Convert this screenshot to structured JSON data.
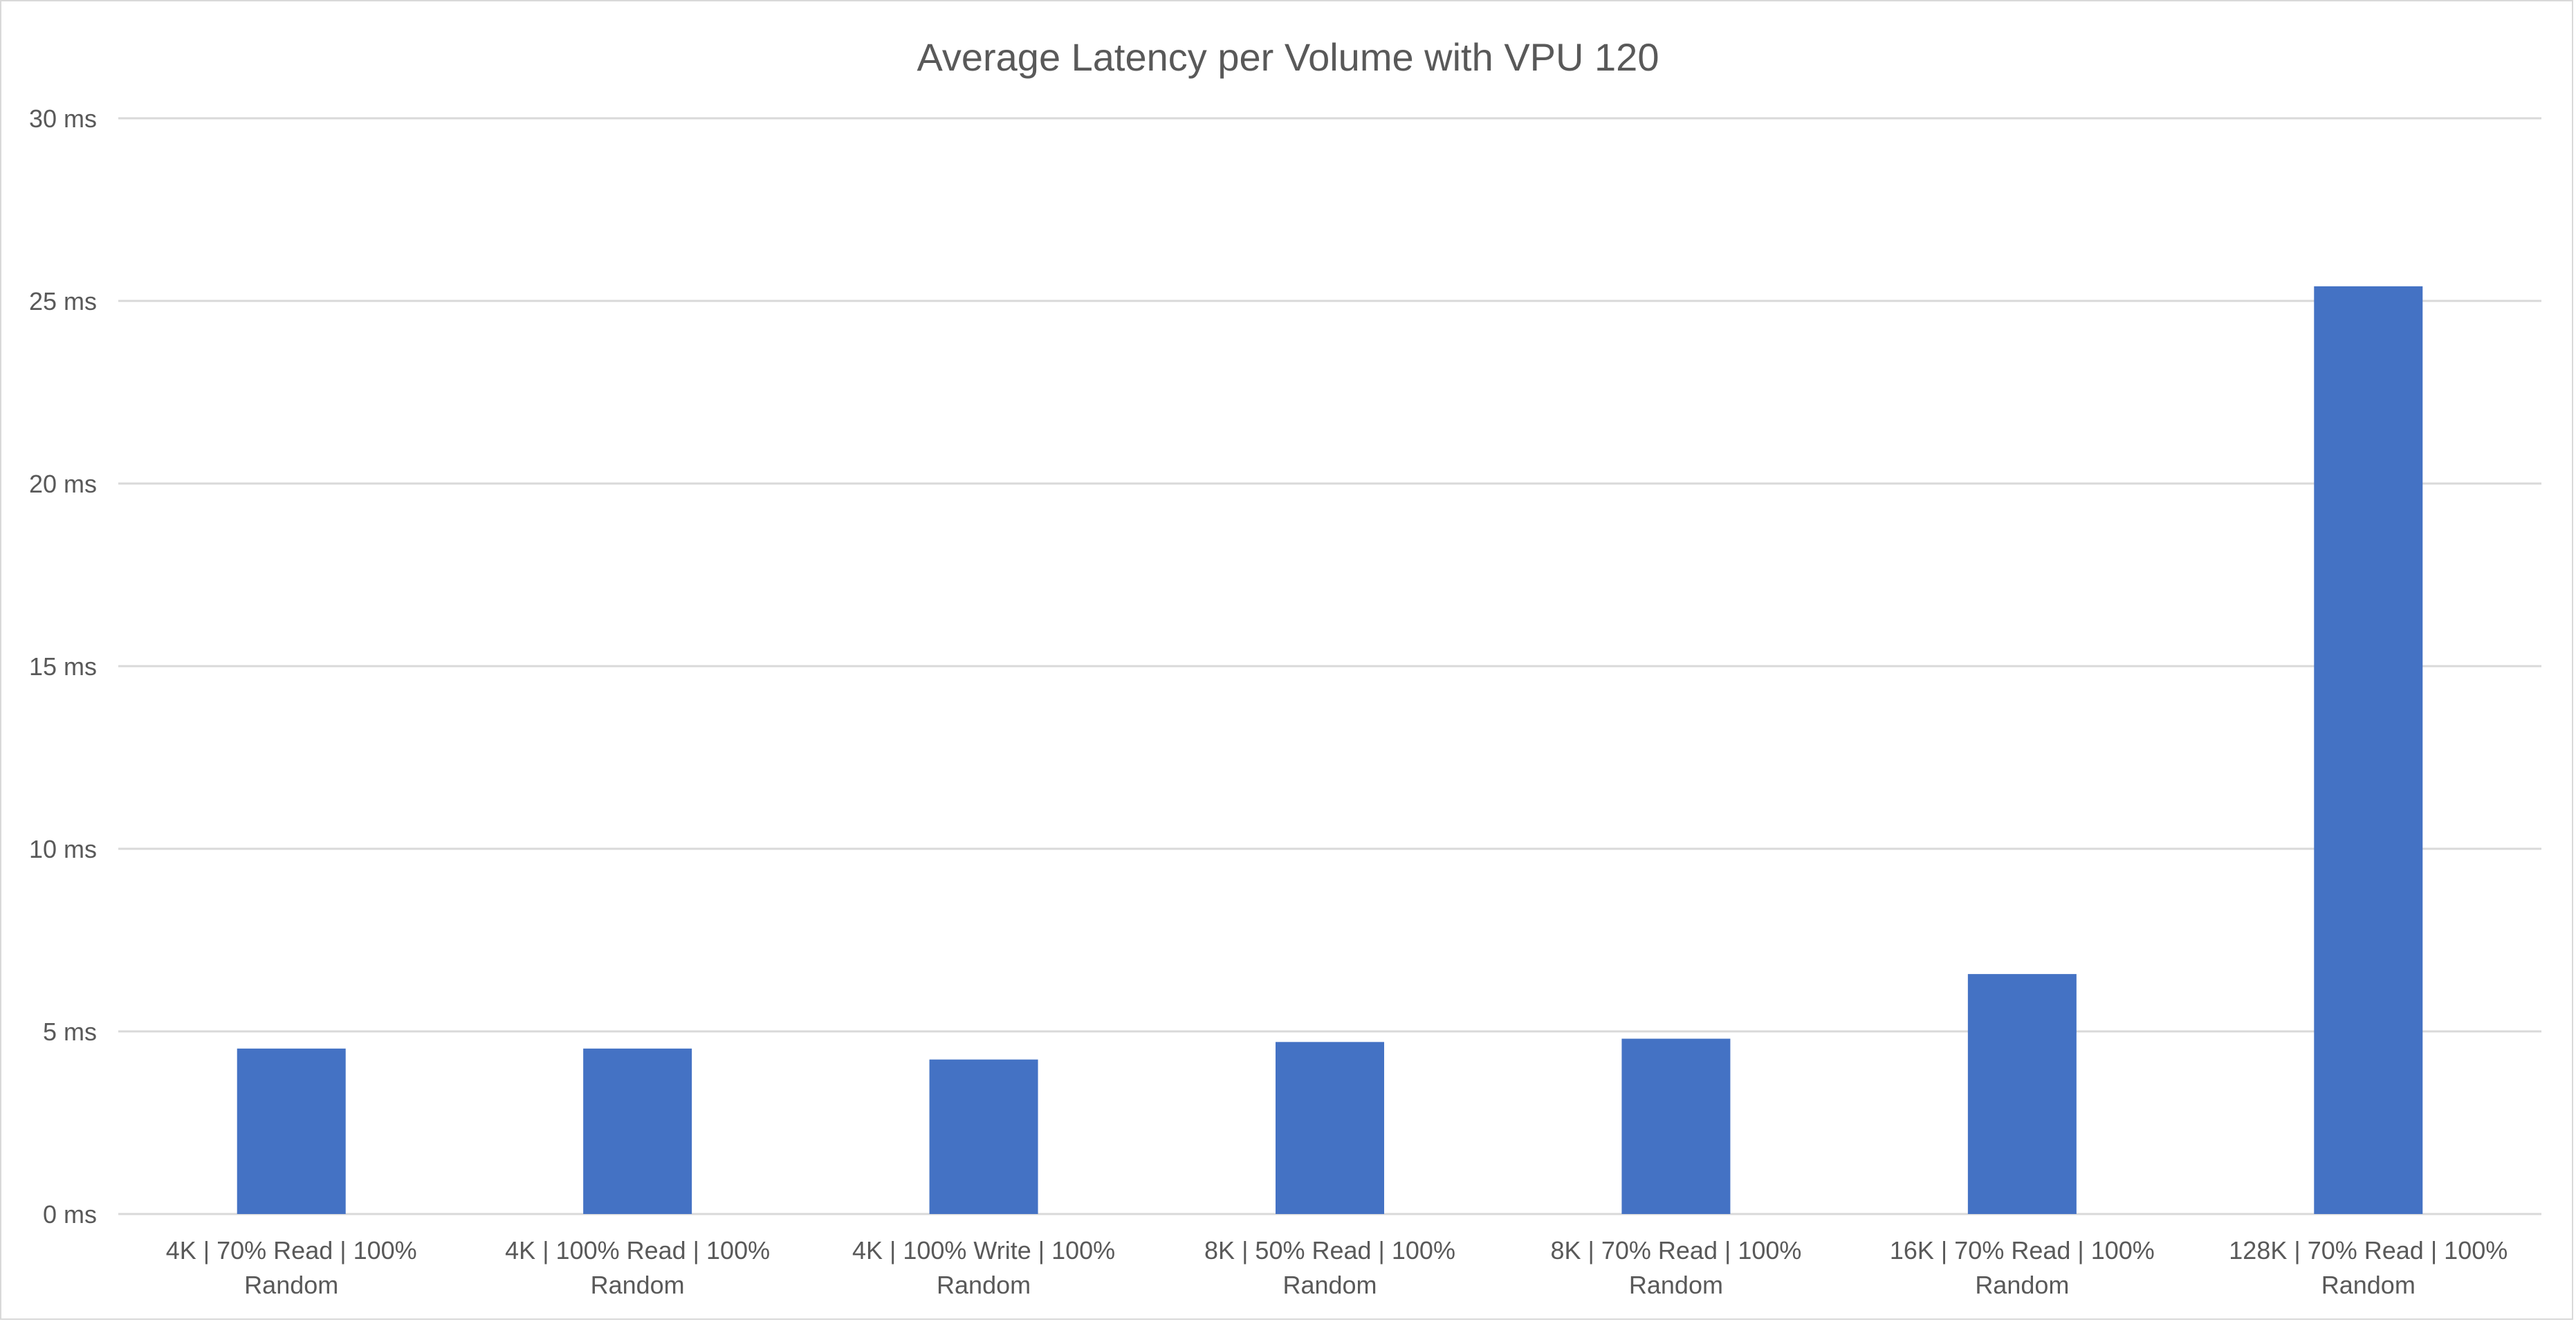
{
  "chart_data": {
    "type": "bar",
    "title": "Average Latency per Volume with VPU 120",
    "xlabel": "",
    "ylabel": "",
    "categories": [
      [
        "4K | 70% Read | 100%",
        "Random"
      ],
      [
        "4K | 100% Read | 100%",
        "Random"
      ],
      [
        "4K | 100% Write | 100%",
        "Random"
      ],
      [
        "8K | 50% Read | 100%",
        "Random"
      ],
      [
        "8K | 70% Read | 100%",
        "Random"
      ],
      [
        "16K | 70% Read | 100%",
        "Random"
      ],
      [
        "128K | 70% Read | 100%",
        "Random"
      ]
    ],
    "values": [
      4.53,
      4.53,
      4.23,
      4.71,
      4.8,
      6.57,
      25.4
    ],
    "ylim": [
      0,
      30
    ],
    "yticks": [
      0,
      5,
      10,
      15,
      20,
      25,
      30
    ],
    "ytick_labels": [
      "0 ms",
      "5 ms",
      "10 ms",
      "15 ms",
      "20 ms",
      "25 ms",
      "30 ms"
    ],
    "grid": true,
    "legend": "none",
    "colors": {
      "bar": "#4472C4",
      "grid": "#D9D9D9",
      "text": "#595959"
    }
  }
}
